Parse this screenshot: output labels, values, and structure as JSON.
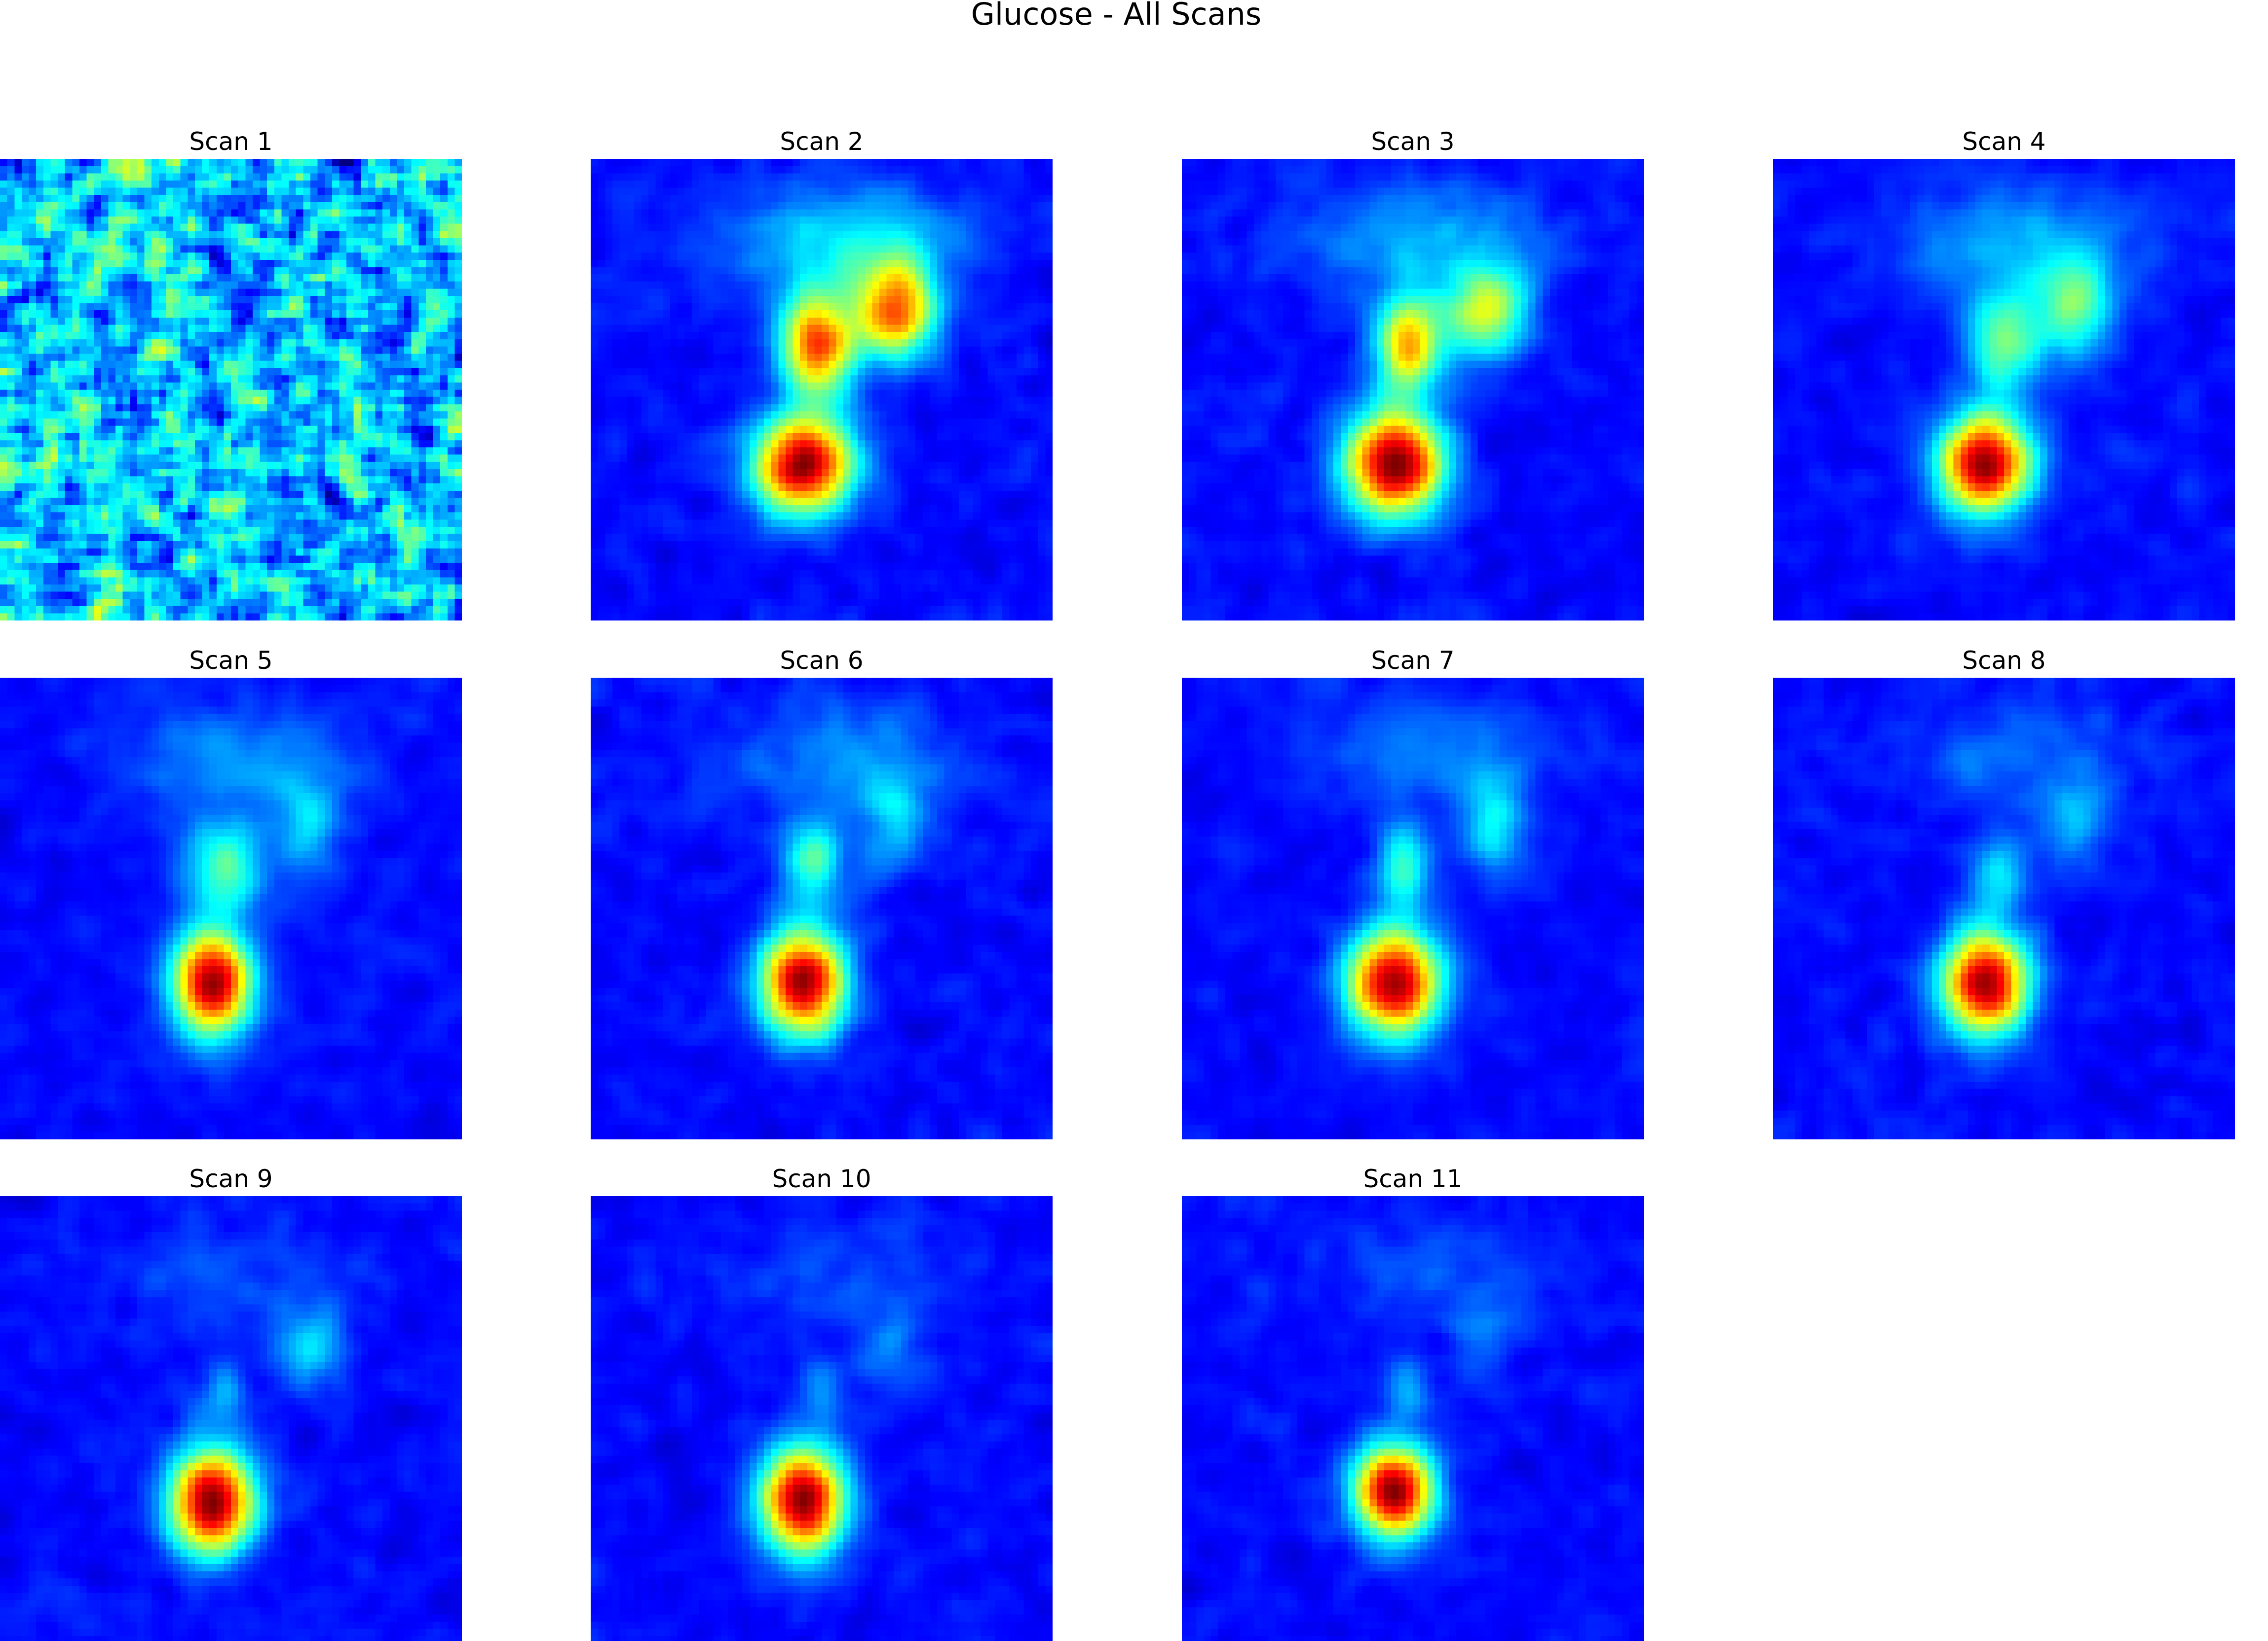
{
  "chart_data": {
    "type": "heatmap",
    "title": "Glucose - All Scans",
    "colormap": "jet",
    "grid": false,
    "layout": {
      "rows": 3,
      "cols": 4
    },
    "value_range": [
      0,
      1
    ],
    "panels": [
      {
        "title": "Scan 1",
        "background": 0.32,
        "noise": 0.34,
        "blobs": []
      },
      {
        "title": "Scan 2",
        "background": 0.13,
        "noise": 0.05,
        "blobs": [
          {
            "cx": 0.46,
            "cy": 0.66,
            "sx": 0.075,
            "sy": 0.075,
            "amp": 0.86
          },
          {
            "cx": 0.49,
            "cy": 0.4,
            "sx": 0.055,
            "sy": 0.075,
            "amp": 0.68
          },
          {
            "cx": 0.66,
            "cy": 0.33,
            "sx": 0.06,
            "sy": 0.075,
            "amp": 0.62
          },
          {
            "cx": 0.55,
            "cy": 0.18,
            "sx": 0.18,
            "sy": 0.09,
            "amp": 0.22
          }
        ]
      },
      {
        "title": "Scan 3",
        "background": 0.13,
        "noise": 0.05,
        "blobs": [
          {
            "cx": 0.46,
            "cy": 0.66,
            "sx": 0.075,
            "sy": 0.08,
            "amp": 0.88
          },
          {
            "cx": 0.49,
            "cy": 0.4,
            "sx": 0.05,
            "sy": 0.07,
            "amp": 0.58
          },
          {
            "cx": 0.66,
            "cy": 0.33,
            "sx": 0.06,
            "sy": 0.07,
            "amp": 0.45
          },
          {
            "cx": 0.52,
            "cy": 0.18,
            "sx": 0.18,
            "sy": 0.09,
            "amp": 0.17
          }
        ]
      },
      {
        "title": "Scan 4",
        "background": 0.13,
        "noise": 0.05,
        "blobs": [
          {
            "cx": 0.46,
            "cy": 0.66,
            "sx": 0.07,
            "sy": 0.075,
            "amp": 0.86
          },
          {
            "cx": 0.5,
            "cy": 0.4,
            "sx": 0.055,
            "sy": 0.075,
            "amp": 0.36
          },
          {
            "cx": 0.65,
            "cy": 0.32,
            "sx": 0.06,
            "sy": 0.075,
            "amp": 0.35
          },
          {
            "cx": 0.53,
            "cy": 0.18,
            "sx": 0.18,
            "sy": 0.09,
            "amp": 0.17
          }
        ]
      },
      {
        "title": "Scan 5",
        "background": 0.13,
        "noise": 0.05,
        "blobs": [
          {
            "cx": 0.46,
            "cy": 0.66,
            "sx": 0.06,
            "sy": 0.08,
            "amp": 0.84
          },
          {
            "cx": 0.48,
            "cy": 0.41,
            "sx": 0.06,
            "sy": 0.065,
            "amp": 0.33
          },
          {
            "cx": 0.66,
            "cy": 0.33,
            "sx": 0.05,
            "sy": 0.08,
            "amp": 0.18
          },
          {
            "cx": 0.53,
            "cy": 0.18,
            "sx": 0.18,
            "sy": 0.09,
            "amp": 0.14
          }
        ]
      },
      {
        "title": "Scan 6",
        "background": 0.13,
        "noise": 0.05,
        "blobs": [
          {
            "cx": 0.46,
            "cy": 0.66,
            "sx": 0.065,
            "sy": 0.08,
            "amp": 0.86
          },
          {
            "cx": 0.48,
            "cy": 0.4,
            "sx": 0.045,
            "sy": 0.06,
            "amp": 0.33
          },
          {
            "cx": 0.65,
            "cy": 0.32,
            "sx": 0.05,
            "sy": 0.08,
            "amp": 0.18
          },
          {
            "cx": 0.55,
            "cy": 0.18,
            "sx": 0.18,
            "sy": 0.09,
            "amp": 0.13
          }
        ]
      },
      {
        "title": "Scan 7",
        "background": 0.13,
        "noise": 0.05,
        "blobs": [
          {
            "cx": 0.46,
            "cy": 0.66,
            "sx": 0.07,
            "sy": 0.08,
            "amp": 0.86
          },
          {
            "cx": 0.48,
            "cy": 0.41,
            "sx": 0.04,
            "sy": 0.065,
            "amp": 0.3
          },
          {
            "cx": 0.67,
            "cy": 0.32,
            "sx": 0.05,
            "sy": 0.075,
            "amp": 0.24
          },
          {
            "cx": 0.55,
            "cy": 0.16,
            "sx": 0.17,
            "sy": 0.08,
            "amp": 0.13
          }
        ]
      },
      {
        "title": "Scan 8",
        "background": 0.13,
        "noise": 0.05,
        "blobs": [
          {
            "cx": 0.46,
            "cy": 0.66,
            "sx": 0.065,
            "sy": 0.08,
            "amp": 0.86
          },
          {
            "cx": 0.49,
            "cy": 0.42,
            "sx": 0.04,
            "sy": 0.06,
            "amp": 0.22
          },
          {
            "cx": 0.65,
            "cy": 0.32,
            "sx": 0.05,
            "sy": 0.075,
            "amp": 0.15
          },
          {
            "cx": 0.55,
            "cy": 0.18,
            "sx": 0.17,
            "sy": 0.08,
            "amp": 0.1
          }
        ]
      },
      {
        "title": "Scan 9",
        "background": 0.13,
        "noise": 0.05,
        "blobs": [
          {
            "cx": 0.46,
            "cy": 0.66,
            "sx": 0.065,
            "sy": 0.08,
            "amp": 0.86
          },
          {
            "cx": 0.48,
            "cy": 0.43,
            "sx": 0.035,
            "sy": 0.05,
            "amp": 0.14
          },
          {
            "cx": 0.67,
            "cy": 0.33,
            "sx": 0.055,
            "sy": 0.06,
            "amp": 0.2
          },
          {
            "cx": 0.5,
            "cy": 0.18,
            "sx": 0.17,
            "sy": 0.08,
            "amp": 0.07
          }
        ]
      },
      {
        "title": "Scan 10",
        "background": 0.13,
        "noise": 0.05,
        "blobs": [
          {
            "cx": 0.46,
            "cy": 0.66,
            "sx": 0.065,
            "sy": 0.08,
            "amp": 0.86
          },
          {
            "cx": 0.5,
            "cy": 0.42,
            "sx": 0.035,
            "sy": 0.05,
            "amp": 0.13
          },
          {
            "cx": 0.65,
            "cy": 0.32,
            "sx": 0.05,
            "sy": 0.07,
            "amp": 0.1
          },
          {
            "cx": 0.55,
            "cy": 0.18,
            "sx": 0.17,
            "sy": 0.08,
            "amp": 0.07
          }
        ]
      },
      {
        "title": "Scan 11",
        "background": 0.13,
        "noise": 0.05,
        "blobs": [
          {
            "cx": 0.46,
            "cy": 0.64,
            "sx": 0.06,
            "sy": 0.07,
            "amp": 0.86
          },
          {
            "cx": 0.49,
            "cy": 0.42,
            "sx": 0.035,
            "sy": 0.05,
            "amp": 0.15
          },
          {
            "cx": 0.65,
            "cy": 0.3,
            "sx": 0.05,
            "sy": 0.07,
            "amp": 0.1
          },
          {
            "cx": 0.55,
            "cy": 0.16,
            "sx": 0.17,
            "sy": 0.08,
            "amp": 0.07
          }
        ]
      }
    ]
  }
}
